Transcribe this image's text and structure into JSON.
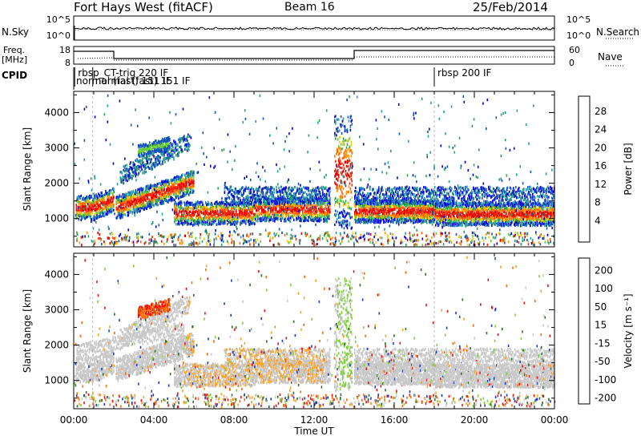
{
  "header": {
    "title": "Fort Hays West (fitACF)",
    "beam": "Beam 16",
    "date": "25/Feb/2014"
  },
  "strips": {
    "nsky_label": "N.Sky",
    "nsearch_label": "N.Search",
    "nsky_ticks": [
      "10^5",
      "10^0"
    ],
    "nsky_right_ticks": [
      "10^5",
      "10^0"
    ],
    "freq_label": "Freq.",
    "freq_unit": "[MHz]",
    "freq_ticks": [
      "18",
      "8"
    ],
    "nave_label": "Nave",
    "nave_ticks": [
      "60",
      "0"
    ],
    "cpid_label": "CPID",
    "cpid_entries": [
      {
        "time_h": 0.05,
        "text": "rbsp_CT-trig 220 IF",
        "row": 0
      },
      {
        "time_h": 0.0,
        "text": "normal (fast) 151 IF",
        "row": 1
      },
      {
        "time_h": 0.95,
        "text": "normal (fast) 151 IF",
        "row": 1
      },
      {
        "time_h": 18.0,
        "text": "rbsp 200 IF",
        "row": 0
      }
    ]
  },
  "colors": {
    "power": [
      "#0000dd",
      "#1155bb",
      "#22a0a0",
      "#2aa055",
      "#66cc33",
      "#ffcc00",
      "#ff9900",
      "#ff6600",
      "#ff2200",
      "#dd0000"
    ],
    "velocity": [
      "#1a3cc8",
      "#2d6c2d",
      "#7fcd3a",
      "#c8c8c8",
      "#ffa020",
      "#ff6a00",
      "#ee1010"
    ]
  },
  "chart_data": [
    {
      "type": "heatmap",
      "name": "Power",
      "ylabel": "Slant Range [km]",
      "xlabel": "",
      "xlim": [
        0,
        24
      ],
      "ylim": [
        200,
        4600
      ],
      "yticks": [
        1000,
        2000,
        3000,
        4000
      ],
      "xticks": [
        0,
        4,
        8,
        12,
        16,
        20,
        24
      ],
      "xtick_labels": [],
      "colorbar": {
        "label": "Power [dB]",
        "ticks": [
          "4",
          "8",
          "12",
          "16",
          "20",
          "24",
          "28"
        ],
        "range": [
          0,
          30
        ]
      }
    },
    {
      "type": "heatmap",
      "name": "Velocity",
      "ylabel": "Slant Range [km]",
      "xlabel": "Time UT",
      "xlim": [
        0,
        24
      ],
      "ylim": [
        200,
        4600
      ],
      "yticks": [
        1000,
        2000,
        3000,
        4000
      ],
      "xticks": [
        0,
        4,
        8,
        12,
        16,
        20,
        24
      ],
      "xtick_labels": [
        "00:00",
        "04:00",
        "08:00",
        "12:00",
        "16:00",
        "20:00",
        "00:00"
      ],
      "colorbar": {
        "label": "Velocity [m s⁻¹]",
        "ticks": [
          "200",
          "100",
          "50",
          "15",
          "-15",
          "-50",
          "-100",
          "-200"
        ],
        "range": [
          -250,
          250
        ]
      }
    }
  ]
}
